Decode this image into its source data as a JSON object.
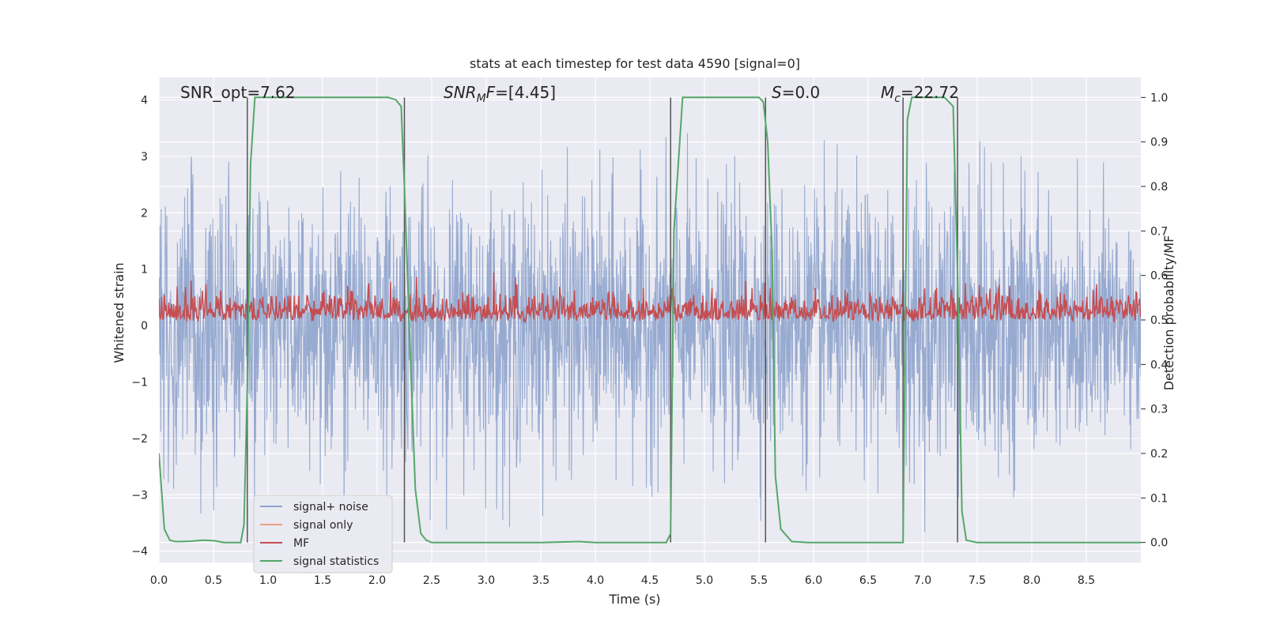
{
  "chart_data": {
    "type": "line",
    "title": "stats at each timestep for test data 4590 [signal=0]",
    "xlabel": "Time (s)",
    "ylabel": "Whitened strain",
    "y2label": "Detection probability/MF",
    "xlim": [
      0.0,
      9.0
    ],
    "ylim": [
      -4.2,
      4.4
    ],
    "y2lim": [
      -0.045,
      1.045
    ],
    "xticks": [
      "0.0",
      "0.5",
      "1.0",
      "1.5",
      "2.0",
      "2.5",
      "3.0",
      "3.5",
      "4.0",
      "4.5",
      "5.0",
      "5.5",
      "6.0",
      "6.5",
      "7.0",
      "7.5",
      "8.0",
      "8.5"
    ],
    "yticks": [
      "−4",
      "−3",
      "−2",
      "−1",
      "0",
      "1",
      "2",
      "3",
      "4"
    ],
    "y2ticks": [
      "0.0",
      "0.1",
      "0.2",
      "0.3",
      "0.4",
      "0.5",
      "0.6",
      "0.7",
      "0.8",
      "0.9",
      "1.0"
    ],
    "grid": true,
    "legend_position": "lower-left",
    "background": "#eaeaf2",
    "colors": {
      "noise": "#8ea3cc",
      "signal_only": "#e8a07e",
      "mf": "#c44e52",
      "stats": "#55a868",
      "vlines": "#555555"
    },
    "annotations": {
      "snr_opt": "SNR_opt=7.62",
      "snr_mf": "=[4.45]",
      "snr_mf_base": "SNR",
      "snr_mf_sub": "M",
      "snr_mf_tail": "F",
      "s": "=0.0",
      "s_base": "S",
      "mc": "=22.72",
      "mc_base": "M",
      "mc_sub": "c"
    },
    "legend": [
      {
        "label": "signal+ noise",
        "color_key": "noise"
      },
      {
        "label": "signal only",
        "color_key": "signal_only"
      },
      {
        "label": "MF",
        "color_key": "mf"
      },
      {
        "label": "signal statistics",
        "color_key": "stats"
      }
    ],
    "vlines_x": [
      0.81,
      2.25,
      4.69,
      5.56,
      6.82,
      7.32
    ],
    "series": [
      {
        "name": "signal statistics",
        "axis": "right",
        "x": [
          0.0,
          0.05,
          0.1,
          0.15,
          0.2,
          0.3,
          0.4,
          0.5,
          0.6,
          0.7,
          0.75,
          0.78,
          0.81,
          0.84,
          0.88,
          1.0,
          1.5,
          2.0,
          2.1,
          2.17,
          2.22,
          2.25,
          2.3,
          2.35,
          2.4,
          2.45,
          2.5,
          3.0,
          3.5,
          3.85,
          4.0,
          4.5,
          4.65,
          4.69,
          4.72,
          4.8,
          5.0,
          5.5,
          5.54,
          5.58,
          5.62,
          5.65,
          5.7,
          5.8,
          5.95,
          6.5,
          6.82,
          6.86,
          6.9,
          7.0,
          7.2,
          7.28,
          7.32,
          7.36,
          7.4,
          7.5,
          8.0,
          8.5,
          9.0
        ],
        "y": [
          0.2,
          0.03,
          0.005,
          0.002,
          0.002,
          0.003,
          0.005,
          0.004,
          0.0,
          0.0,
          0.0,
          0.04,
          0.35,
          0.85,
          1.0,
          1.0,
          1.0,
          1.0,
          1.0,
          0.995,
          0.98,
          0.8,
          0.45,
          0.12,
          0.02,
          0.005,
          0.0,
          0.0,
          0.0,
          0.002,
          0.0,
          0.0,
          0.0,
          0.02,
          0.7,
          1.0,
          1.0,
          1.0,
          0.99,
          0.9,
          0.65,
          0.15,
          0.03,
          0.002,
          0.0,
          0.0,
          0.0,
          0.95,
          1.0,
          1.0,
          1.0,
          0.98,
          0.6,
          0.07,
          0.005,
          0.0,
          0.0,
          0.0,
          0.0
        ]
      },
      {
        "name": "signal+ noise",
        "axis": "left",
        "summary": "dense whitened-strain noise spanning roughly −3.7 to 4.0 across 0–9 s",
        "range": [
          -3.7,
          4.0
        ]
      },
      {
        "name": "MF",
        "axis": "left",
        "summary": "matched-filter output fluctuating roughly between 0.0 and 0.95",
        "range": [
          0.0,
          0.95
        ]
      }
    ]
  }
}
